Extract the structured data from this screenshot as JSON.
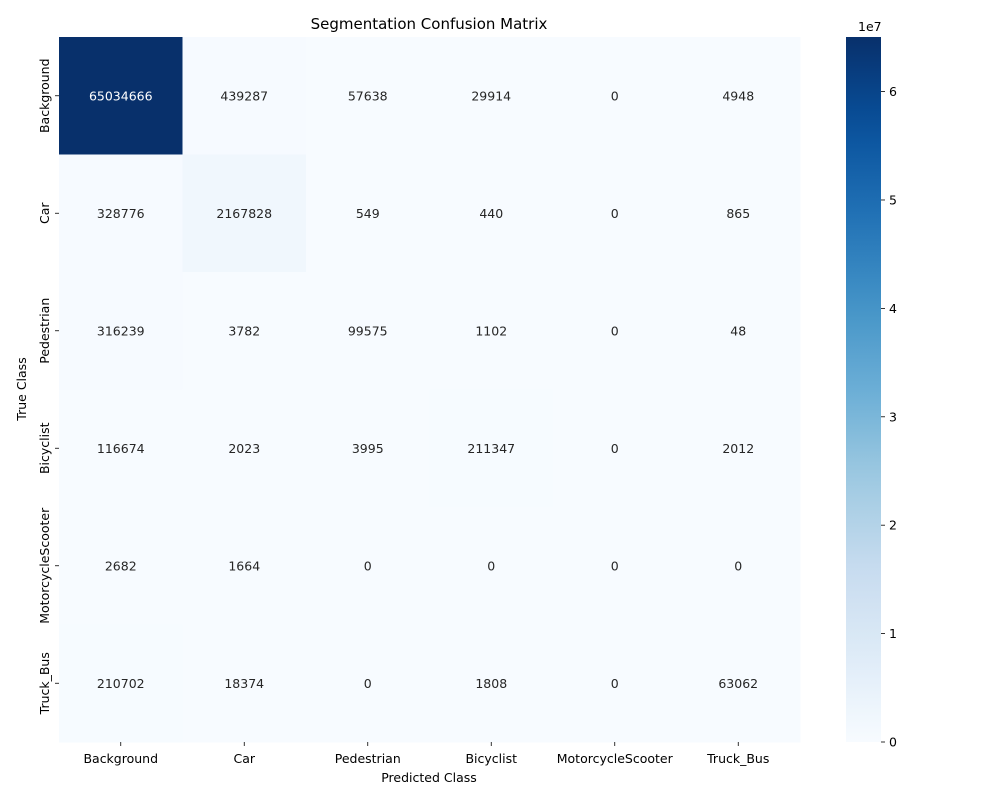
{
  "chart_data": {
    "type": "heatmap",
    "title": "Segmentation Confusion Matrix",
    "xlabel": "Predicted Class",
    "ylabel": "True Class",
    "x_categories": [
      "Background",
      "Car",
      "Pedestrian",
      "Bicyclist",
      "MotorcycleScooter",
      "Truck_Bus"
    ],
    "y_categories": [
      "Background",
      "Car",
      "Pedestrian",
      "Bicyclist",
      "MotorcycleScooter",
      "Truck_Bus"
    ],
    "values": [
      [
        65034666,
        439287,
        57638,
        29914,
        0,
        4948
      ],
      [
        328776,
        2167828,
        549,
        440,
        0,
        865
      ],
      [
        316239,
        3782,
        99575,
        1102,
        0,
        48
      ],
      [
        116674,
        2023,
        3995,
        211347,
        0,
        2012
      ],
      [
        2682,
        1664,
        0,
        0,
        0,
        0
      ],
      [
        210702,
        18374,
        0,
        1808,
        0,
        63062
      ]
    ],
    "colormap": "Blues",
    "colorbar": {
      "min": 0,
      "max": 65034666,
      "ticks": [
        0,
        1,
        2,
        3,
        4,
        5,
        6
      ],
      "exponent_label": "1e7"
    }
  }
}
